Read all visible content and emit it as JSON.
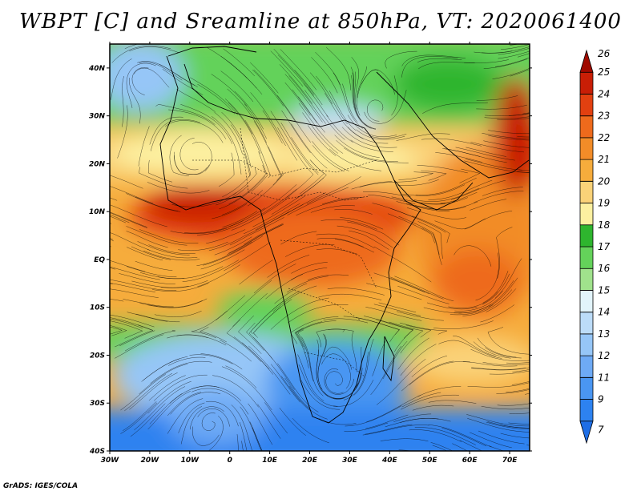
{
  "title": "WBPT [C] and Sreamline at 850hPa, VT: 2020061400",
  "credit": "GrADS: IGES/COLA",
  "map": {
    "lon_range": [
      -30,
      75
    ],
    "lat_range": [
      -40,
      45
    ],
    "lon_ticks": [
      {
        "v": -30,
        "label": "30W"
      },
      {
        "v": -20,
        "label": "20W"
      },
      {
        "v": -10,
        "label": "10W"
      },
      {
        "v": 0,
        "label": "0"
      },
      {
        "v": 10,
        "label": "10E"
      },
      {
        "v": 20,
        "label": "20E"
      },
      {
        "v": 30,
        "label": "30E"
      },
      {
        "v": 40,
        "label": "40E"
      },
      {
        "v": 50,
        "label": "50E"
      },
      {
        "v": 60,
        "label": "60E"
      },
      {
        "v": 70,
        "label": "70E"
      }
    ],
    "lat_ticks": [
      {
        "v": 40,
        "label": "40N"
      },
      {
        "v": 30,
        "label": "30N"
      },
      {
        "v": 20,
        "label": "20N"
      },
      {
        "v": 10,
        "label": "10N"
      },
      {
        "v": 0,
        "label": "EQ"
      },
      {
        "v": -10,
        "label": "10S"
      },
      {
        "v": -20,
        "label": "20S"
      },
      {
        "v": -30,
        "label": "30S"
      },
      {
        "v": -40,
        "label": "40S"
      }
    ]
  },
  "colorbar": {
    "labels": [
      "7",
      "9",
      "11",
      "12",
      "13",
      "14",
      "15",
      "16",
      "17",
      "18",
      "19",
      "20",
      "21",
      "22",
      "23",
      "24",
      "25",
      "26"
    ],
    "colors": [
      "#1e6ee6",
      "#2d82f0",
      "#4a96f2",
      "#6eaaf5",
      "#96c6f7",
      "#bcdcf8",
      "#e2f4fb",
      "#a0e28c",
      "#64d25a",
      "#2eb52e",
      "#fcf0a0",
      "#fad278",
      "#f6ac3c",
      "#f28c28",
      "#ee6a1c",
      "#e24010",
      "#c81e06",
      "#a00a00"
    ]
  }
}
